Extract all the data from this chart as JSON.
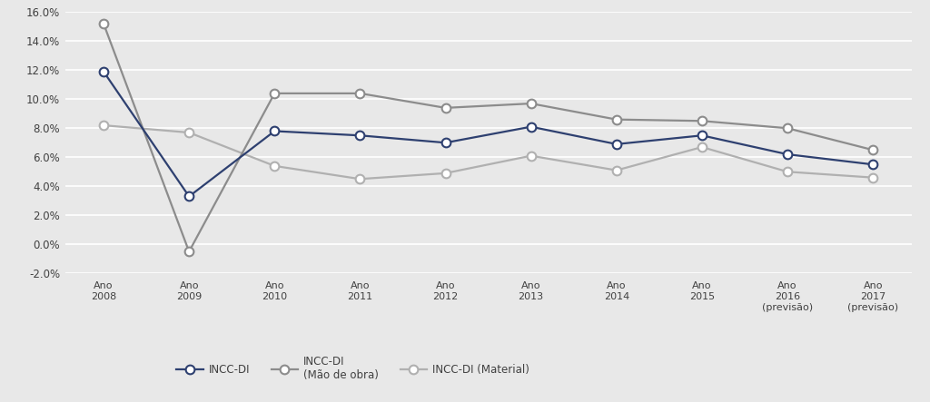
{
  "categories": [
    "Ano\n2008",
    "Ano\n2009",
    "Ano\n2010",
    "Ano\n2011",
    "Ano\n2012",
    "Ano\n2013",
    "Ano\n2014",
    "Ano\n2015",
    "Ano\n2016\n(previsão)",
    "Ano\n2017\n(previsão)"
  ],
  "incc_di": [
    0.119,
    0.033,
    0.078,
    0.075,
    0.07,
    0.081,
    0.069,
    0.075,
    0.062,
    0.055
  ],
  "incc_di_mao": [
    0.152,
    -0.005,
    0.104,
    0.104,
    0.094,
    0.097,
    0.086,
    0.085,
    0.08,
    0.065
  ],
  "incc_di_mat": [
    0.082,
    0.077,
    0.054,
    0.045,
    0.049,
    0.061,
    0.051,
    0.067,
    0.05,
    0.046
  ],
  "color_di": "#2e4070",
  "color_mao": "#8c8c8c",
  "color_mat": "#b0b0b0",
  "legend_di": "INCC-DI",
  "legend_mao": "INCC-DI\n(Mão de obra)",
  "legend_mat": "INCC-DI (Material)",
  "ylim": [
    -0.02,
    0.16
  ],
  "yticks": [
    -0.02,
    0.0,
    0.02,
    0.04,
    0.06,
    0.08,
    0.1,
    0.12,
    0.14,
    0.16
  ],
  "bg_color": "#e8e8e8",
  "plot_bg": "#e8e8e8",
  "grid_color": "#ffffff",
  "text_color": "#404040",
  "marker_size": 7,
  "linewidth": 1.6
}
